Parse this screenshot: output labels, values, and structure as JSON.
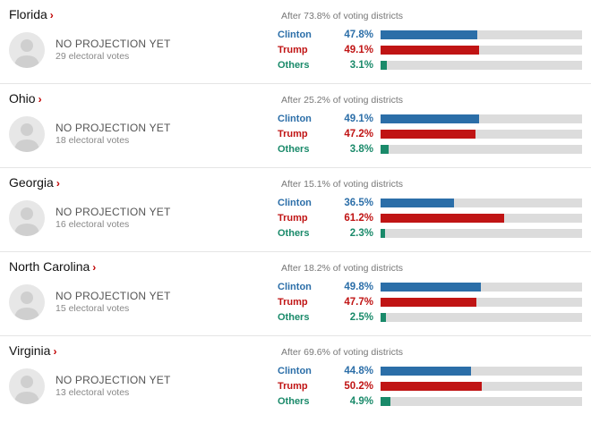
{
  "colors": {
    "clinton": "#2b6ea8",
    "trump": "#c01414",
    "others": "#1a8a6a",
    "track": "#dcdcdc",
    "chevron": "#c00000"
  },
  "projection_label": "NO PROJECTION YET",
  "candidates": [
    "Clinton",
    "Trump",
    "Others"
  ],
  "states": [
    {
      "name": "Florida",
      "reporting": "After 73.8% of voting districts",
      "electoral": "29 electoral votes",
      "results": [
        {
          "cand": "Clinton",
          "pct": 47.8,
          "color_key": "clinton"
        },
        {
          "cand": "Trump",
          "pct": 49.1,
          "color_key": "trump"
        },
        {
          "cand": "Others",
          "pct": 3.1,
          "color_key": "others"
        }
      ]
    },
    {
      "name": "Ohio",
      "reporting": "After 25.2% of voting districts",
      "electoral": "18 electoral votes",
      "results": [
        {
          "cand": "Clinton",
          "pct": 49.1,
          "color_key": "clinton"
        },
        {
          "cand": "Trump",
          "pct": 47.2,
          "color_key": "trump"
        },
        {
          "cand": "Others",
          "pct": 3.8,
          "color_key": "others"
        }
      ]
    },
    {
      "name": "Georgia",
      "reporting": "After 15.1% of voting districts",
      "electoral": "16 electoral votes",
      "results": [
        {
          "cand": "Clinton",
          "pct": 36.5,
          "color_key": "clinton"
        },
        {
          "cand": "Trump",
          "pct": 61.2,
          "color_key": "trump"
        },
        {
          "cand": "Others",
          "pct": 2.3,
          "color_key": "others"
        }
      ]
    },
    {
      "name": "North Carolina",
      "reporting": "After 18.2% of voting districts",
      "electoral": "15 electoral votes",
      "results": [
        {
          "cand": "Clinton",
          "pct": 49.8,
          "color_key": "clinton"
        },
        {
          "cand": "Trump",
          "pct": 47.7,
          "color_key": "trump"
        },
        {
          "cand": "Others",
          "pct": 2.5,
          "color_key": "others"
        }
      ]
    },
    {
      "name": "Virginia",
      "reporting": "After 69.6% of voting districts",
      "electoral": "13 electoral votes",
      "results": [
        {
          "cand": "Clinton",
          "pct": 44.8,
          "color_key": "clinton"
        },
        {
          "cand": "Trump",
          "pct": 50.2,
          "color_key": "trump"
        },
        {
          "cand": "Others",
          "pct": 4.9,
          "color_key": "others"
        }
      ]
    }
  ]
}
